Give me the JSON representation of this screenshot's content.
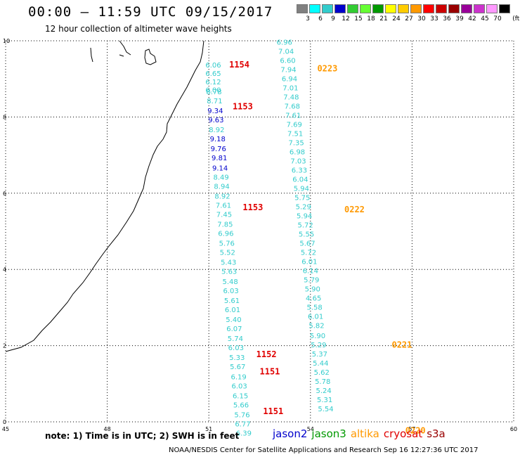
{
  "header": {
    "title": "00:00 – 11:59 UTC 09/15/2017",
    "subtitle": "12 hour collection of altimeter wave heights"
  },
  "color_scale": {
    "unit": "(ft)",
    "bins": [
      {
        "label": "3",
        "color": "#808080"
      },
      {
        "label": "6",
        "color": "#00ffff"
      },
      {
        "label": "9",
        "color": "#33cccc"
      },
      {
        "label": "12",
        "color": "#0000cc"
      },
      {
        "label": "15",
        "color": "#33cc33"
      },
      {
        "label": "18",
        "color": "#66ff33"
      },
      {
        "label": "21",
        "color": "#009900"
      },
      {
        "label": "24",
        "color": "#ffff00"
      },
      {
        "label": "27",
        "color": "#ffcc00"
      },
      {
        "label": "30",
        "color": "#ff9900"
      },
      {
        "label": "33",
        "color": "#ff0000"
      },
      {
        "label": "36",
        "color": "#cc0000"
      },
      {
        "label": "39",
        "color": "#990000"
      },
      {
        "label": "42",
        "color": "#990099"
      },
      {
        "label": "45",
        "color": "#cc33cc"
      },
      {
        "label": "70",
        "color": "#ff99ff"
      },
      {
        "label": "",
        "color": "#000000"
      }
    ]
  },
  "map": {
    "lon_ticks": [
      "45",
      "48",
      "51",
      "54",
      "57",
      "60"
    ],
    "lat_ticks": [
      "0",
      "2",
      "4",
      "6",
      "8",
      "10"
    ],
    "lon_range": [
      45,
      60
    ],
    "lat_range": [
      0,
      10
    ],
    "grid": true,
    "colors": {
      "light": "#33cccc",
      "dark": "#0000cc",
      "red": "#e00000",
      "orange": "#ff9900"
    }
  },
  "tracks": [
    {
      "name": "track-a",
      "times": [
        {
          "label": "1154",
          "lon": 51.6,
          "lat": 9.3,
          "color": "red"
        },
        {
          "label": "1153",
          "lon": 51.7,
          "lat": 8.2,
          "color": "red"
        },
        {
          "label": "1153",
          "lon": 52.0,
          "lat": 5.55,
          "color": "red"
        },
        {
          "label": "1152",
          "lon": 52.4,
          "lat": 1.7,
          "color": "red"
        },
        {
          "label": "1151",
          "lon": 52.5,
          "lat": 1.25,
          "color": "red"
        },
        {
          "label": "1151",
          "lon": 52.6,
          "lat": 0.2,
          "color": "red"
        }
      ],
      "points": [
        {
          "lon": 50.9,
          "lat": 9.3,
          "v": "6.06",
          "c": "light"
        },
        {
          "lon": 50.9,
          "lat": 9.08,
          "v": "6.65",
          "c": "light"
        },
        {
          "lon": 50.9,
          "lat": 8.86,
          "v": "6.12",
          "c": "light"
        },
        {
          "lon": 50.9,
          "lat": 8.64,
          "v": "6.00",
          "c": "light"
        },
        {
          "lon": 50.92,
          "lat": 8.6,
          "v": "8.78",
          "c": "light"
        },
        {
          "lon": 50.94,
          "lat": 8.36,
          "v": "8.71",
          "c": "light"
        },
        {
          "lon": 50.96,
          "lat": 8.1,
          "v": "9.34",
          "c": "dark"
        },
        {
          "lon": 50.98,
          "lat": 7.86,
          "v": "9.63",
          "c": "dark"
        },
        {
          "lon": 51.0,
          "lat": 7.6,
          "v": "8.92",
          "c": "light"
        },
        {
          "lon": 51.03,
          "lat": 7.36,
          "v": "9.18",
          "c": "dark"
        },
        {
          "lon": 51.05,
          "lat": 7.1,
          "v": "9.76",
          "c": "dark"
        },
        {
          "lon": 51.08,
          "lat": 6.86,
          "v": "9.81",
          "c": "dark"
        },
        {
          "lon": 51.1,
          "lat": 6.6,
          "v": "9.14",
          "c": "dark"
        },
        {
          "lon": 51.13,
          "lat": 6.36,
          "v": "8.49",
          "c": "light"
        },
        {
          "lon": 51.15,
          "lat": 6.12,
          "v": "8.94",
          "c": "light"
        },
        {
          "lon": 51.17,
          "lat": 5.86,
          "v": "8.92",
          "c": "light"
        },
        {
          "lon": 51.2,
          "lat": 5.62,
          "v": "7.61",
          "c": "light"
        },
        {
          "lon": 51.22,
          "lat": 5.38,
          "v": "7.45",
          "c": "light"
        },
        {
          "lon": 51.25,
          "lat": 5.12,
          "v": "7.85",
          "c": "light"
        },
        {
          "lon": 51.27,
          "lat": 4.88,
          "v": "6.96",
          "c": "light"
        },
        {
          "lon": 51.3,
          "lat": 4.62,
          "v": "5.76",
          "c": "light"
        },
        {
          "lon": 51.32,
          "lat": 4.38,
          "v": "5.52",
          "c": "light"
        },
        {
          "lon": 51.35,
          "lat": 4.12,
          "v": "5.43",
          "c": "light"
        },
        {
          "lon": 51.37,
          "lat": 3.88,
          "v": "5.63",
          "c": "light"
        },
        {
          "lon": 51.4,
          "lat": 3.62,
          "v": "5.48",
          "c": "light"
        },
        {
          "lon": 51.42,
          "lat": 3.38,
          "v": "6.03",
          "c": "light"
        },
        {
          "lon": 51.45,
          "lat": 3.12,
          "v": "5.61",
          "c": "light"
        },
        {
          "lon": 51.47,
          "lat": 2.88,
          "v": "6.01",
          "c": "light"
        },
        {
          "lon": 51.5,
          "lat": 2.62,
          "v": "5.40",
          "c": "light"
        },
        {
          "lon": 51.52,
          "lat": 2.38,
          "v": "6.07",
          "c": "light"
        },
        {
          "lon": 51.55,
          "lat": 2.12,
          "v": "5.74",
          "c": "light"
        },
        {
          "lon": 51.57,
          "lat": 1.88,
          "v": "6.03",
          "c": "light"
        },
        {
          "lon": 51.6,
          "lat": 1.62,
          "v": "5.33",
          "c": "light"
        },
        {
          "lon": 51.62,
          "lat": 1.38,
          "v": "5.67",
          "c": "light"
        },
        {
          "lon": 51.65,
          "lat": 1.12,
          "v": "6.19",
          "c": "light"
        },
        {
          "lon": 51.67,
          "lat": 0.88,
          "v": "6.03",
          "c": "light"
        },
        {
          "lon": 51.7,
          "lat": 0.62,
          "v": "6.15",
          "c": "light"
        },
        {
          "lon": 51.72,
          "lat": 0.38,
          "v": "5.66",
          "c": "light"
        },
        {
          "lon": 51.75,
          "lat": 0.12,
          "v": "5.76",
          "c": "light"
        },
        {
          "lon": 51.77,
          "lat": -0.12,
          "v": "6.77",
          "c": "light"
        },
        {
          "lon": 51.8,
          "lat": -0.36,
          "v": "6.39",
          "c": "light"
        }
      ]
    },
    {
      "name": "track-b",
      "times": [
        {
          "label": "0223",
          "lon": 54.2,
          "lat": 9.2,
          "color": "orange"
        },
        {
          "label": "0222",
          "lon": 55.0,
          "lat": 5.5,
          "color": "orange"
        },
        {
          "lon": 56.4,
          "lat": 1.95,
          "label": "0221",
          "color": "orange"
        },
        {
          "label": "0220",
          "lon": 56.8,
          "lat": -0.3,
          "color": "orange"
        }
      ],
      "points": [
        {
          "lon": 53.0,
          "lat": 9.9,
          "v": "6.96",
          "c": "light"
        },
        {
          "lon": 53.05,
          "lat": 9.66,
          "v": "7.04",
          "c": "light"
        },
        {
          "lon": 53.1,
          "lat": 9.42,
          "v": "6.60",
          "c": "light"
        },
        {
          "lon": 53.12,
          "lat": 9.18,
          "v": "7.94",
          "c": "light"
        },
        {
          "lon": 53.15,
          "lat": 8.94,
          "v": "6.94",
          "c": "light"
        },
        {
          "lon": 53.18,
          "lat": 8.7,
          "v": "7.01",
          "c": "light"
        },
        {
          "lon": 53.2,
          "lat": 8.46,
          "v": "7.48",
          "c": "light"
        },
        {
          "lon": 53.23,
          "lat": 8.22,
          "v": "7.68",
          "c": "light"
        },
        {
          "lon": 53.26,
          "lat": 7.98,
          "v": "7.61",
          "c": "light"
        },
        {
          "lon": 53.29,
          "lat": 7.74,
          "v": "7.69",
          "c": "light"
        },
        {
          "lon": 53.32,
          "lat": 7.5,
          "v": "7.51",
          "c": "light"
        },
        {
          "lon": 53.35,
          "lat": 7.26,
          "v": "7.35",
          "c": "light"
        },
        {
          "lon": 53.38,
          "lat": 7.02,
          "v": "6.98",
          "c": "light"
        },
        {
          "lon": 53.41,
          "lat": 6.78,
          "v": "7.03",
          "c": "light"
        },
        {
          "lon": 53.44,
          "lat": 6.54,
          "v": "6.33",
          "c": "light"
        },
        {
          "lon": 53.47,
          "lat": 6.3,
          "v": "6.04",
          "c": "light"
        },
        {
          "lon": 53.5,
          "lat": 6.06,
          "v": "5.94",
          "c": "light"
        },
        {
          "lon": 53.53,
          "lat": 5.82,
          "v": "5.75",
          "c": "light"
        },
        {
          "lon": 53.56,
          "lat": 5.58,
          "v": "5.29",
          "c": "light"
        },
        {
          "lon": 53.59,
          "lat": 5.34,
          "v": "5.94",
          "c": "light"
        },
        {
          "lon": 53.62,
          "lat": 5.1,
          "v": "5.72",
          "c": "light"
        },
        {
          "lon": 53.65,
          "lat": 4.86,
          "v": "5.55",
          "c": "light"
        },
        {
          "lon": 53.68,
          "lat": 4.62,
          "v": "5.67",
          "c": "light"
        },
        {
          "lon": 53.71,
          "lat": 4.38,
          "v": "5.72",
          "c": "light"
        },
        {
          "lon": 53.74,
          "lat": 4.14,
          "v": "6.01",
          "c": "light"
        },
        {
          "lon": 53.77,
          "lat": 3.9,
          "v": "6.14",
          "c": "light"
        },
        {
          "lon": 53.8,
          "lat": 3.66,
          "v": "5.79",
          "c": "light"
        },
        {
          "lon": 53.83,
          "lat": 3.42,
          "v": "5.90",
          "c": "light"
        },
        {
          "lon": 53.86,
          "lat": 3.18,
          "v": "4.65",
          "c": "light"
        },
        {
          "lon": 53.89,
          "lat": 2.94,
          "v": "5.58",
          "c": "light"
        },
        {
          "lon": 53.92,
          "lat": 2.7,
          "v": "6.01",
          "c": "light"
        },
        {
          "lon": 53.95,
          "lat": 2.46,
          "v": "5.82",
          "c": "light"
        },
        {
          "lon": 53.98,
          "lat": 2.2,
          "v": "5.90",
          "c": "light"
        },
        {
          "lon": 54.01,
          "lat": 1.96,
          "v": "5.29",
          "c": "light"
        },
        {
          "lon": 54.04,
          "lat": 1.72,
          "v": "5.37",
          "c": "light"
        },
        {
          "lon": 54.07,
          "lat": 1.48,
          "v": "5.44",
          "c": "light"
        },
        {
          "lon": 54.1,
          "lat": 1.24,
          "v": "5.62",
          "c": "light"
        },
        {
          "lon": 54.13,
          "lat": 1.0,
          "v": "5.78",
          "c": "light"
        },
        {
          "lon": 54.16,
          "lat": 0.76,
          "v": "5.24",
          "c": "light"
        },
        {
          "lon": 54.19,
          "lat": 0.52,
          "v": "5.31",
          "c": "light"
        },
        {
          "lon": 54.22,
          "lat": 0.28,
          "v": "5.54",
          "c": "light"
        }
      ]
    }
  ],
  "footer": {
    "note": "note: 1) Time is in UTC; 2) SWH is in feet",
    "legend": [
      {
        "label": "jason2",
        "color": "#0000cc"
      },
      {
        "label": "jason3",
        "color": "#009900"
      },
      {
        "label": "altika",
        "color": "#ff9900"
      },
      {
        "label": "cryosat",
        "color": "#e00000"
      },
      {
        "label": "s3a",
        "color": "#990000"
      }
    ],
    "credit": "NOAA/NESDIS Center for Satellite Applications and Research    Sep 16 12:27:36 UTC 2017"
  }
}
